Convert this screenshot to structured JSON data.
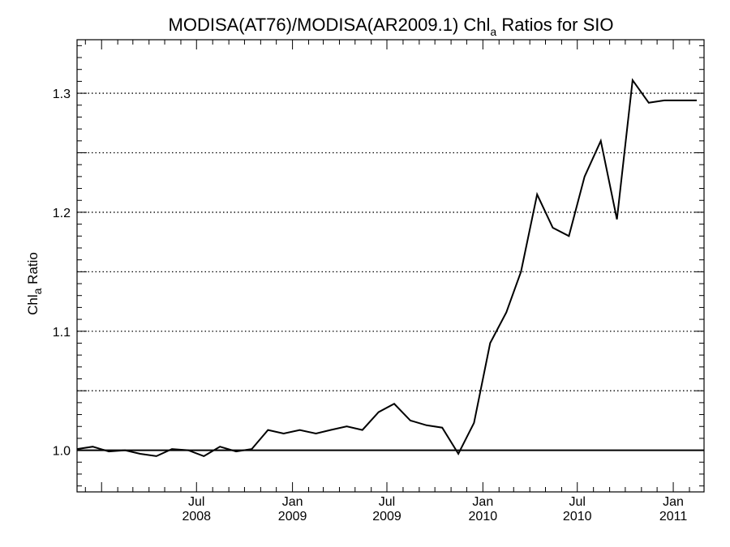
{
  "chart_data": {
    "type": "line",
    "title": {
      "main": "MODISA(AT76)/MODISA(AR2009.1)  Chl",
      "subscript": "a",
      "rest": " Ratios for SIO"
    },
    "ylabel": {
      "main": "Chl",
      "subscript": "a",
      "rest": " Ratio"
    },
    "xlabel": "",
    "ylim": [
      0.965,
      1.345
    ],
    "xlim": [
      "2007-11-15",
      "2011-03-01"
    ],
    "y_ticks": [
      {
        "value": 1.0,
        "label": "1.0"
      },
      {
        "value": 1.1,
        "label": "1.1"
      },
      {
        "value": 1.2,
        "label": "1.2"
      },
      {
        "value": 1.3,
        "label": "1.3"
      }
    ],
    "x_ticks": [
      {
        "date": "2008-07-01",
        "label_top": "Jul",
        "label_bottom": "2008"
      },
      {
        "date": "2009-01-01",
        "label_top": "Jan",
        "label_bottom": "2009"
      },
      {
        "date": "2009-07-01",
        "label_top": "Jul",
        "label_bottom": "2009"
      },
      {
        "date": "2010-01-01",
        "label_top": "Jan",
        "label_bottom": "2010"
      },
      {
        "date": "2010-07-01",
        "label_top": "Jul",
        "label_bottom": "2010"
      },
      {
        "date": "2011-01-01",
        "label_top": "Jan",
        "label_bottom": "2011"
      }
    ],
    "grid": {
      "dotted_y": [
        1.05,
        1.1,
        1.15,
        1.2,
        1.25,
        1.3
      ],
      "solid_reference_y": 1.0
    },
    "series": [
      {
        "x": [
          "2007-11-15",
          "2007-12-15",
          "2008-01-15",
          "2008-02-15",
          "2008-03-15",
          "2008-04-15",
          "2008-05-15",
          "2008-06-15",
          "2008-07-15",
          "2008-08-15",
          "2008-09-15",
          "2008-10-15",
          "2008-11-15",
          "2008-12-15",
          "2009-01-15",
          "2009-02-15",
          "2009-03-15",
          "2009-04-15",
          "2009-05-15",
          "2009-06-15",
          "2009-07-15",
          "2009-08-15",
          "2009-09-15",
          "2009-10-15",
          "2009-11-15",
          "2009-12-15",
          "2010-01-15",
          "2010-02-15",
          "2010-03-15",
          "2010-04-15",
          "2010-05-15",
          "2010-06-15",
          "2010-07-15",
          "2010-08-15",
          "2010-09-15",
          "2010-10-15",
          "2010-11-15",
          "2010-12-15",
          "2011-01-15",
          "2011-02-15"
        ],
        "y": [
          1.001,
          1.003,
          0.999,
          1.0,
          0.997,
          0.995,
          1.001,
          1.0,
          0.995,
          1.003,
          0.999,
          1.001,
          1.017,
          1.014,
          1.017,
          1.014,
          1.017,
          1.02,
          1.017,
          1.032,
          1.039,
          1.025,
          1.021,
          1.019,
          0.997,
          1.023,
          1.09,
          1.116,
          1.15,
          1.215,
          1.187,
          1.18,
          1.23,
          1.26,
          1.194,
          1.311,
          1.292,
          1.294,
          1.294,
          1.294
        ]
      }
    ]
  }
}
